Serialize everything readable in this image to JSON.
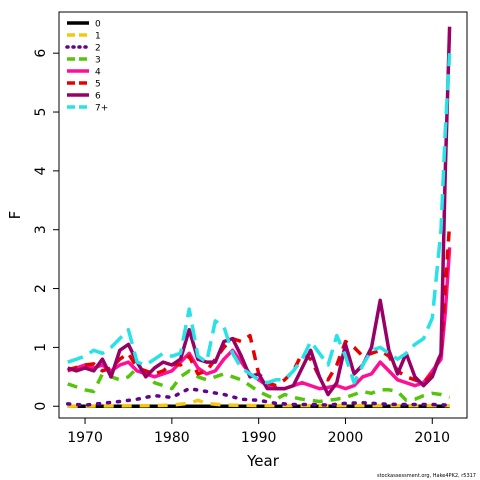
{
  "chart_data": {
    "type": "line",
    "xlabel": "Year",
    "ylabel": "F",
    "xlim": [
      1967,
      2014
    ],
    "ylim": [
      -0.2,
      6.7
    ],
    "x_ticks": [
      1970,
      1980,
      1990,
      2000,
      2010
    ],
    "y_ticks": [
      0,
      1,
      2,
      3,
      4,
      5,
      6
    ],
    "legend_position": "top-left",
    "footer": "stockassessment.org, Hake4PK2, r5317",
    "series": [
      {
        "name": "0",
        "color": "#000000",
        "dash": "solid",
        "x": [
          1968,
          2012
        ],
        "y": [
          0,
          0
        ]
      },
      {
        "name": "1",
        "color": "#f5c710",
        "dash": "dashed",
        "x": [
          1968,
          1978,
          1980,
          1982,
          1983,
          1984,
          1986,
          1990,
          2000,
          2005,
          2010,
          2012
        ],
        "y": [
          0,
          0.01,
          0.02,
          0.05,
          0.1,
          0.05,
          0.02,
          0.01,
          0.01,
          0.01,
          0.01,
          0.01
        ]
      },
      {
        "name": "2",
        "color": "#61048e",
        "dash": "dotted",
        "x": [
          1968,
          1970,
          1972,
          1974,
          1976,
          1978,
          1980,
          1982,
          1984,
          1986,
          1988,
          1990,
          1992,
          1994,
          1996,
          1998,
          2000,
          2002,
          2004,
          2006,
          2008,
          2010,
          2012
        ],
        "y": [
          0.04,
          0.02,
          0.05,
          0.08,
          0.12,
          0.18,
          0.15,
          0.3,
          0.25,
          0.2,
          0.12,
          0.1,
          0.05,
          0.03,
          0.03,
          0.02,
          0.05,
          0.06,
          0.04,
          0.03,
          0.03,
          0.03,
          0.02
        ]
      },
      {
        "name": "3",
        "color": "#55c40d",
        "dash": "dashed",
        "x": [
          1968,
          1970,
          1971,
          1972,
          1973,
          1974,
          1975,
          1976,
          1977,
          1978,
          1979,
          1980,
          1981,
          1982,
          1983,
          1984,
          1985,
          1986,
          1987,
          1988,
          1989,
          1990,
          1991,
          1992,
          1993,
          1994,
          1995,
          1996,
          1997,
          1998,
          1999,
          2000,
          2001,
          2002,
          2003,
          2004,
          2005,
          2006,
          2007,
          2008,
          2009,
          2010,
          2011,
          2012
        ],
        "y": [
          0.38,
          0.28,
          0.25,
          0.55,
          0.5,
          0.45,
          0.5,
          0.65,
          0.55,
          0.4,
          0.35,
          0.3,
          0.5,
          0.6,
          0.5,
          0.45,
          0.5,
          0.55,
          0.5,
          0.45,
          0.35,
          0.25,
          0.18,
          0.12,
          0.2,
          0.15,
          0.12,
          0.1,
          0.08,
          0.1,
          0.12,
          0.15,
          0.2,
          0.25,
          0.22,
          0.28,
          0.28,
          0.25,
          0.1,
          0.12,
          0.18,
          0.22,
          0.2,
          0.15
        ]
      },
      {
        "name": "4",
        "color": "#ff0f98",
        "dash": "solid",
        "x": [
          1968,
          1969,
          1970,
          1971,
          1972,
          1973,
          1974,
          1975,
          1976,
          1977,
          1978,
          1979,
          1980,
          1981,
          1982,
          1983,
          1984,
          1985,
          1986,
          1987,
          1988,
          1989,
          1990,
          1991,
          1992,
          1993,
          1994,
          1995,
          1996,
          1997,
          1998,
          1999,
          2000,
          2001,
          2002,
          2003,
          2004,
          2005,
          2006,
          2007,
          2008,
          2009,
          2010,
          2011,
          2011.5,
          2012
        ],
        "y": [
          0.6,
          0.65,
          0.7,
          0.65,
          0.7,
          0.6,
          0.7,
          0.75,
          0.6,
          0.55,
          0.5,
          0.55,
          0.6,
          0.75,
          0.9,
          0.65,
          0.55,
          0.6,
          0.8,
          0.95,
          0.75,
          0.55,
          0.45,
          0.35,
          0.3,
          0.3,
          0.35,
          0.4,
          0.35,
          0.3,
          0.32,
          0.35,
          0.3,
          0.35,
          0.5,
          0.55,
          0.75,
          0.6,
          0.45,
          0.4,
          0.35,
          0.4,
          0.6,
          0.8,
          1.6,
          2.7
        ]
      },
      {
        "name": "5",
        "color": "#e60000",
        "dash": "dashed",
        "x": [
          1968,
          1969,
          1970,
          1971,
          1972,
          1973,
          1974,
          1975,
          1976,
          1977,
          1978,
          1979,
          1980,
          1981,
          1982,
          1983,
          1984,
          1985,
          1986,
          1987,
          1988,
          1989,
          1990,
          1991,
          1992,
          1993,
          1994,
          1995,
          1996,
          1997,
          1998,
          1999,
          2000,
          2001,
          2002,
          2003,
          2004,
          2005,
          2006,
          2007,
          2008,
          2009,
          2010,
          2011,
          2011.5,
          2012
        ],
        "y": [
          0.62,
          0.66,
          0.7,
          0.72,
          0.6,
          0.65,
          0.8,
          0.9,
          0.65,
          0.6,
          0.55,
          0.6,
          0.72,
          0.7,
          0.85,
          0.55,
          0.6,
          0.8,
          1.0,
          1.15,
          1.1,
          1.2,
          0.55,
          0.4,
          0.35,
          0.45,
          0.6,
          0.9,
          0.8,
          0.5,
          0.45,
          0.7,
          1.1,
          1.0,
          0.85,
          0.9,
          0.95,
          0.85,
          0.6,
          0.5,
          0.45,
          0.4,
          0.55,
          0.9,
          2.0,
          3.1
        ]
      },
      {
        "name": "6",
        "color": "#990066",
        "dash": "solid",
        "x": [
          1968,
          1969,
          1970,
          1971,
          1972,
          1973,
          1974,
          1975,
          1976,
          1977,
          1978,
          1979,
          1980,
          1981,
          1982,
          1983,
          1984,
          1985,
          1986,
          1987,
          1988,
          1989,
          1990,
          1991,
          1992,
          1993,
          1994,
          1995,
          1996,
          1997,
          1998,
          1999,
          2000,
          2001,
          2002,
          2003,
          2004,
          2005,
          2006,
          2007,
          2008,
          2009,
          2010,
          2011,
          2011.5,
          2012
        ],
        "y": [
          0.65,
          0.6,
          0.65,
          0.6,
          0.8,
          0.5,
          0.95,
          1.05,
          0.75,
          0.5,
          0.65,
          0.75,
          0.7,
          0.8,
          1.3,
          0.8,
          0.75,
          0.75,
          1.1,
          1.15,
          0.85,
          0.5,
          0.55,
          0.3,
          0.3,
          0.3,
          0.35,
          0.65,
          0.95,
          0.5,
          0.2,
          0.4,
          1.05,
          0.55,
          0.7,
          1.0,
          1.8,
          0.95,
          0.55,
          0.9,
          0.5,
          0.35,
          0.5,
          0.9,
          4.0,
          6.45
        ]
      },
      {
        "name": "7+",
        "color": "#28e2e5",
        "dash": "longdash",
        "x": [
          1968,
          1969,
          1970,
          1971,
          1972,
          1973,
          1974,
          1975,
          1976,
          1977,
          1978,
          1979,
          1980,
          1981,
          1982,
          1983,
          1984,
          1985,
          1986,
          1987,
          1988,
          1989,
          1990,
          1991,
          1992,
          1993,
          1994,
          1995,
          1996,
          1997,
          1998,
          1999,
          2000,
          2001,
          2002,
          2003,
          2004,
          2005,
          2006,
          2007,
          2008,
          2009,
          2010,
          2011,
          2011.5,
          2012
        ],
        "y": [
          0.75,
          0.8,
          0.85,
          0.95,
          0.9,
          1.0,
          1.15,
          1.3,
          0.75,
          0.7,
          0.8,
          0.9,
          0.85,
          0.9,
          1.65,
          0.85,
          0.75,
          1.45,
          1.35,
          0.9,
          0.65,
          0.55,
          0.45,
          0.4,
          0.45,
          0.45,
          0.6,
          0.8,
          1.1,
          0.9,
          0.7,
          1.2,
          0.85,
          0.4,
          0.7,
          0.95,
          1.0,
          0.9,
          0.8,
          0.9,
          1.05,
          1.15,
          1.5,
          3.0,
          4.7,
          6.0
        ]
      }
    ]
  }
}
